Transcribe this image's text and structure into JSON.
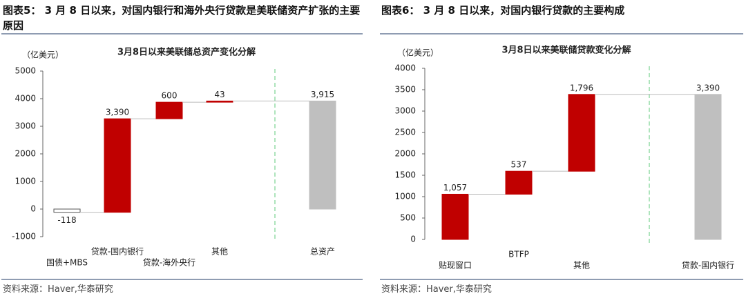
{
  "chart_data": [
    {
      "type": "waterfall",
      "caption": "图表5：  3 月 8 日以来，对国内银行和海外央行贷款是美联储资产扩张的主要原因",
      "title": "3月8日以来美联储总资产变化分解",
      "y_label": "（亿美元）",
      "categories": [
        "国债+MBS",
        "贷款-国内银行",
        "贷款-海外央行",
        "其他",
        "总资产"
      ],
      "values": [
        -118,
        3390,
        600,
        43,
        3915
      ],
      "value_labels": [
        "-118",
        "3,390",
        "600",
        "43",
        "3,915"
      ],
      "totals": [
        false,
        false,
        false,
        false,
        true
      ],
      "colors": [
        "#ffffff",
        "#c00000",
        "#c00000",
        "#c00000",
        "#bfbfbf"
      ],
      "ylim": [
        -1000,
        5000
      ],
      "yticks": [
        -1000,
        0,
        1000,
        2000,
        3000,
        4000,
        5000
      ],
      "source": "资料来源：Haver,华泰研究"
    },
    {
      "type": "waterfall",
      "caption": "图表6：  3 月 8 日以来，对国内银行贷款的主要构成",
      "title": "3月8日以来美联储贷款变化分解",
      "y_label": "（亿美元）",
      "categories": [
        "贴现窗口",
        "BTFP",
        "其他",
        "贷款-国内银行"
      ],
      "values": [
        1057,
        537,
        1796,
        3390
      ],
      "value_labels": [
        "1,057",
        "537",
        "1,796",
        "3,390"
      ],
      "totals": [
        false,
        false,
        false,
        true
      ],
      "colors": [
        "#c00000",
        "#c00000",
        "#c00000",
        "#bfbfbf"
      ],
      "ylim": [
        0,
        4000
      ],
      "yticks": [
        0,
        500,
        1000,
        1500,
        2000,
        2500,
        3000,
        3500,
        4000
      ],
      "source": "资料来源：Haver,华泰研究"
    }
  ]
}
